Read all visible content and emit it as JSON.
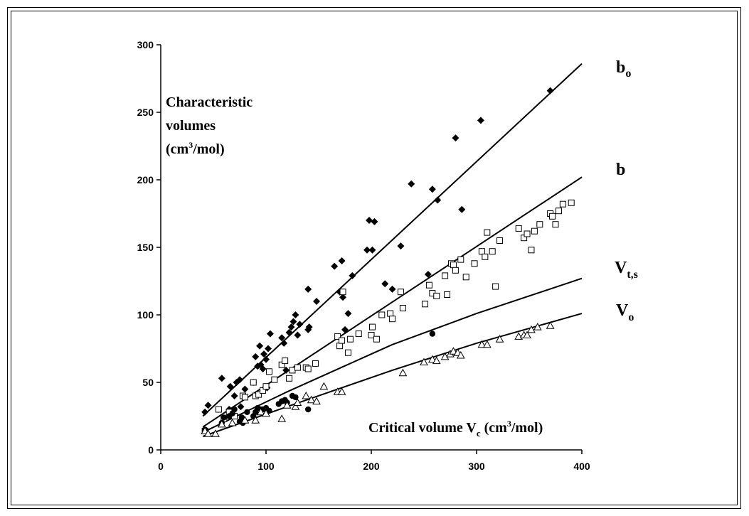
{
  "chart_data": {
    "type": "scatter",
    "xlabel": {
      "text": "Critical volume V",
      "sub": "c",
      "unit_pre": " (cm",
      "unit_sup": "3",
      "unit_post": "/mol)"
    },
    "ylabel": {
      "line1": "Characteristic",
      "line2": "volumes",
      "line3_pre": "(cm",
      "line3_sup": "3",
      "line3_post": "/mol)"
    },
    "xlim": [
      0,
      400
    ],
    "ylim": [
      0,
      300
    ],
    "xticks": [
      0,
      100,
      200,
      300,
      400
    ],
    "yticks": [
      0,
      50,
      100,
      150,
      200,
      250,
      300
    ],
    "grid": false,
    "series": [
      {
        "name": "bo",
        "label_main": "b",
        "label_sub": "o",
        "label_at": [
          300
        ],
        "marker": "diamond-filled",
        "points": [
          [
            42,
            28
          ],
          [
            45,
            33
          ],
          [
            58,
            53
          ],
          [
            65,
            30
          ],
          [
            66,
            47
          ],
          [
            68,
            25
          ],
          [
            70,
            40
          ],
          [
            72,
            50
          ],
          [
            75,
            52
          ],
          [
            76,
            32
          ],
          [
            80,
            45
          ],
          [
            88,
            50
          ],
          [
            90,
            69
          ],
          [
            92,
            62
          ],
          [
            94,
            77
          ],
          [
            95,
            63
          ],
          [
            97,
            60
          ],
          [
            98,
            71
          ],
          [
            100,
            67
          ],
          [
            101,
            46
          ],
          [
            102,
            75
          ],
          [
            104,
            86
          ],
          [
            115,
            83
          ],
          [
            117,
            79
          ],
          [
            119,
            59
          ],
          [
            122,
            87
          ],
          [
            124,
            91
          ],
          [
            126,
            95
          ],
          [
            128,
            100
          ],
          [
            130,
            85
          ],
          [
            132,
            93
          ],
          [
            140,
            119
          ],
          [
            140,
            89
          ],
          [
            141,
            91
          ],
          [
            148,
            110
          ],
          [
            165,
            136
          ],
          [
            170,
            117
          ],
          [
            172,
            140
          ],
          [
            173,
            113
          ],
          [
            175,
            89
          ],
          [
            178,
            101
          ],
          [
            182,
            129
          ],
          [
            196,
            148
          ],
          [
            198,
            170
          ],
          [
            201,
            148
          ],
          [
            203,
            169
          ],
          [
            213,
            123
          ],
          [
            220,
            119
          ],
          [
            238,
            197
          ],
          [
            228,
            151
          ],
          [
            254,
            130
          ],
          [
            258,
            193
          ],
          [
            263,
            185
          ],
          [
            280,
            231
          ],
          [
            286,
            178
          ],
          [
            304,
            244
          ],
          [
            370,
            266
          ]
        ]
      },
      {
        "name": "b",
        "label_main": "b",
        "label_sub": "",
        "label_at": [
          300
        ],
        "marker": "square-open",
        "points": [
          [
            42,
            14
          ],
          [
            55,
            30
          ],
          [
            60,
            23
          ],
          [
            65,
            28
          ],
          [
            70,
            25
          ],
          [
            78,
            40
          ],
          [
            80,
            39
          ],
          [
            88,
            50
          ],
          [
            90,
            40
          ],
          [
            93,
            41
          ],
          [
            97,
            44
          ],
          [
            100,
            47
          ],
          [
            103,
            58
          ],
          [
            108,
            52
          ],
          [
            115,
            63
          ],
          [
            118,
            66
          ],
          [
            122,
            53
          ],
          [
            125,
            59
          ],
          [
            130,
            61
          ],
          [
            138,
            61
          ],
          [
            140,
            60
          ],
          [
            147,
            64
          ],
          [
            168,
            84
          ],
          [
            170,
            77
          ],
          [
            172,
            81
          ],
          [
            173,
            117
          ],
          [
            178,
            72
          ],
          [
            180,
            82
          ],
          [
            188,
            86
          ],
          [
            200,
            85
          ],
          [
            201,
            91
          ],
          [
            205,
            82
          ],
          [
            210,
            100
          ],
          [
            218,
            101
          ],
          [
            220,
            97
          ],
          [
            228,
            117
          ],
          [
            230,
            105
          ],
          [
            251,
            108
          ],
          [
            255,
            122
          ],
          [
            258,
            116
          ],
          [
            262,
            114
          ],
          [
            270,
            129
          ],
          [
            272,
            115
          ],
          [
            276,
            138
          ],
          [
            278,
            137
          ],
          [
            280,
            133
          ],
          [
            285,
            141
          ],
          [
            290,
            128
          ],
          [
            298,
            138
          ],
          [
            305,
            147
          ],
          [
            308,
            143
          ],
          [
            310,
            161
          ],
          [
            315,
            147
          ],
          [
            318,
            121
          ],
          [
            322,
            155
          ],
          [
            340,
            164
          ],
          [
            345,
            157
          ],
          [
            348,
            160
          ],
          [
            352,
            148
          ],
          [
            355,
            162
          ],
          [
            360,
            167
          ],
          [
            370,
            175
          ],
          [
            372,
            173
          ],
          [
            375,
            167
          ],
          [
            378,
            177
          ],
          [
            382,
            182
          ],
          [
            390,
            183
          ]
        ]
      },
      {
        "name": "Vt,s",
        "label_main": "V",
        "label_sub": "t,s",
        "label_at": [
          300
        ],
        "marker": "circle-filled",
        "points": [
          [
            42,
            15
          ],
          [
            58,
            20
          ],
          [
            60,
            24
          ],
          [
            65,
            25
          ],
          [
            68,
            27
          ],
          [
            70,
            30
          ],
          [
            75,
            21
          ],
          [
            77,
            24
          ],
          [
            78,
            20
          ],
          [
            82,
            28
          ],
          [
            88,
            25
          ],
          [
            90,
            28
          ],
          [
            92,
            31
          ],
          [
            95,
            30
          ],
          [
            97,
            30
          ],
          [
            100,
            31
          ],
          [
            103,
            29
          ],
          [
            112,
            34
          ],
          [
            115,
            36
          ],
          [
            118,
            37
          ],
          [
            120,
            35
          ],
          [
            125,
            40
          ],
          [
            128,
            39
          ],
          [
            140,
            30
          ],
          [
            258,
            86
          ]
        ]
      },
      {
        "name": "Vo",
        "label_main": "V",
        "label_sub": "o",
        "label_at": [
          300
        ],
        "marker": "triangle-open",
        "points": [
          [
            42,
            14
          ],
          [
            45,
            12
          ],
          [
            52,
            12
          ],
          [
            58,
            19
          ],
          [
            68,
            20
          ],
          [
            80,
            22
          ],
          [
            90,
            22
          ],
          [
            95,
            28
          ],
          [
            100,
            27
          ],
          [
            115,
            23
          ],
          [
            120,
            33
          ],
          [
            128,
            32
          ],
          [
            130,
            35
          ],
          [
            138,
            40
          ],
          [
            143,
            37
          ],
          [
            148,
            36
          ],
          [
            155,
            47
          ],
          [
            168,
            43
          ],
          [
            172,
            43
          ],
          [
            230,
            57
          ],
          [
            250,
            65
          ],
          [
            258,
            67
          ],
          [
            262,
            66
          ],
          [
            270,
            69
          ],
          [
            275,
            71
          ],
          [
            278,
            73
          ],
          [
            282,
            72
          ],
          [
            285,
            70
          ],
          [
            305,
            78
          ],
          [
            310,
            78
          ],
          [
            322,
            82
          ],
          [
            340,
            84
          ],
          [
            345,
            85
          ],
          [
            348,
            85
          ],
          [
            352,
            89
          ],
          [
            358,
            91
          ],
          [
            370,
            92
          ]
        ]
      }
    ],
    "fits": [
      {
        "series": "bo",
        "x": [
          40,
          400
        ],
        "y": [
          25,
          286
        ]
      },
      {
        "series": "b",
        "x": [
          40,
          400
        ],
        "y": [
          17,
          202
        ]
      },
      {
        "series": "Vt,s",
        "x": [
          40,
          120,
          220,
          300,
          400
        ],
        "y": [
          13,
          43,
          78,
          101,
          127
        ]
      },
      {
        "series": "Vo",
        "x": [
          40,
          120,
          220,
          300,
          400
        ],
        "y": [
          10,
          32,
          59,
          79,
          101
        ]
      }
    ]
  }
}
